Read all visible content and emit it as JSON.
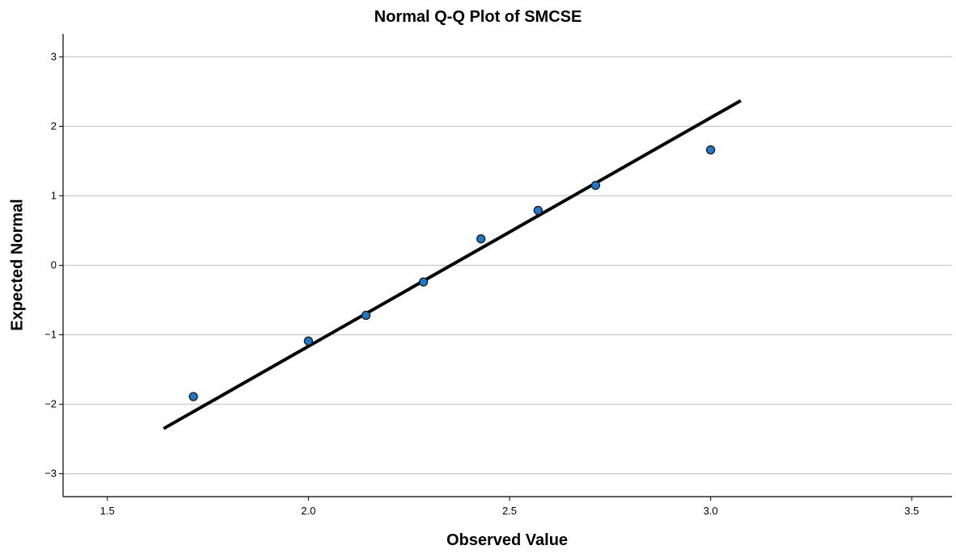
{
  "chart_data": {
    "type": "scatter",
    "title": "Normal Q-Q Plot of SMCSE",
    "xlabel": "Observed Value",
    "ylabel": "Expected Normal",
    "xlim": [
      1.39,
      3.6
    ],
    "ylim": [
      -3.33,
      3.33
    ],
    "xticks": [
      "1.5",
      "2.0",
      "2.5",
      "3.0",
      "3.5"
    ],
    "yticks": [
      "3",
      "2",
      "1",
      "0",
      "-1",
      "-2",
      "-3"
    ],
    "grid": "horizontal",
    "points": [
      {
        "x": 1.714,
        "y": -1.89
      },
      {
        "x": 2.0,
        "y": -1.09
      },
      {
        "x": 2.143,
        "y": -0.72
      },
      {
        "x": 2.286,
        "y": -0.24
      },
      {
        "x": 2.429,
        "y": 0.38
      },
      {
        "x": 2.571,
        "y": 0.79
      },
      {
        "x": 2.714,
        "y": 1.15
      },
      {
        "x": 3.0,
        "y": 1.66
      }
    ],
    "reference_line": {
      "x": [
        1.64,
        3.075
      ],
      "y": [
        -2.35,
        2.37
      ]
    },
    "colors": {
      "point_fill": "#1f77c8",
      "point_stroke": "#1a1a1a",
      "line": "#000000",
      "grid": "#c8c8c8"
    }
  }
}
